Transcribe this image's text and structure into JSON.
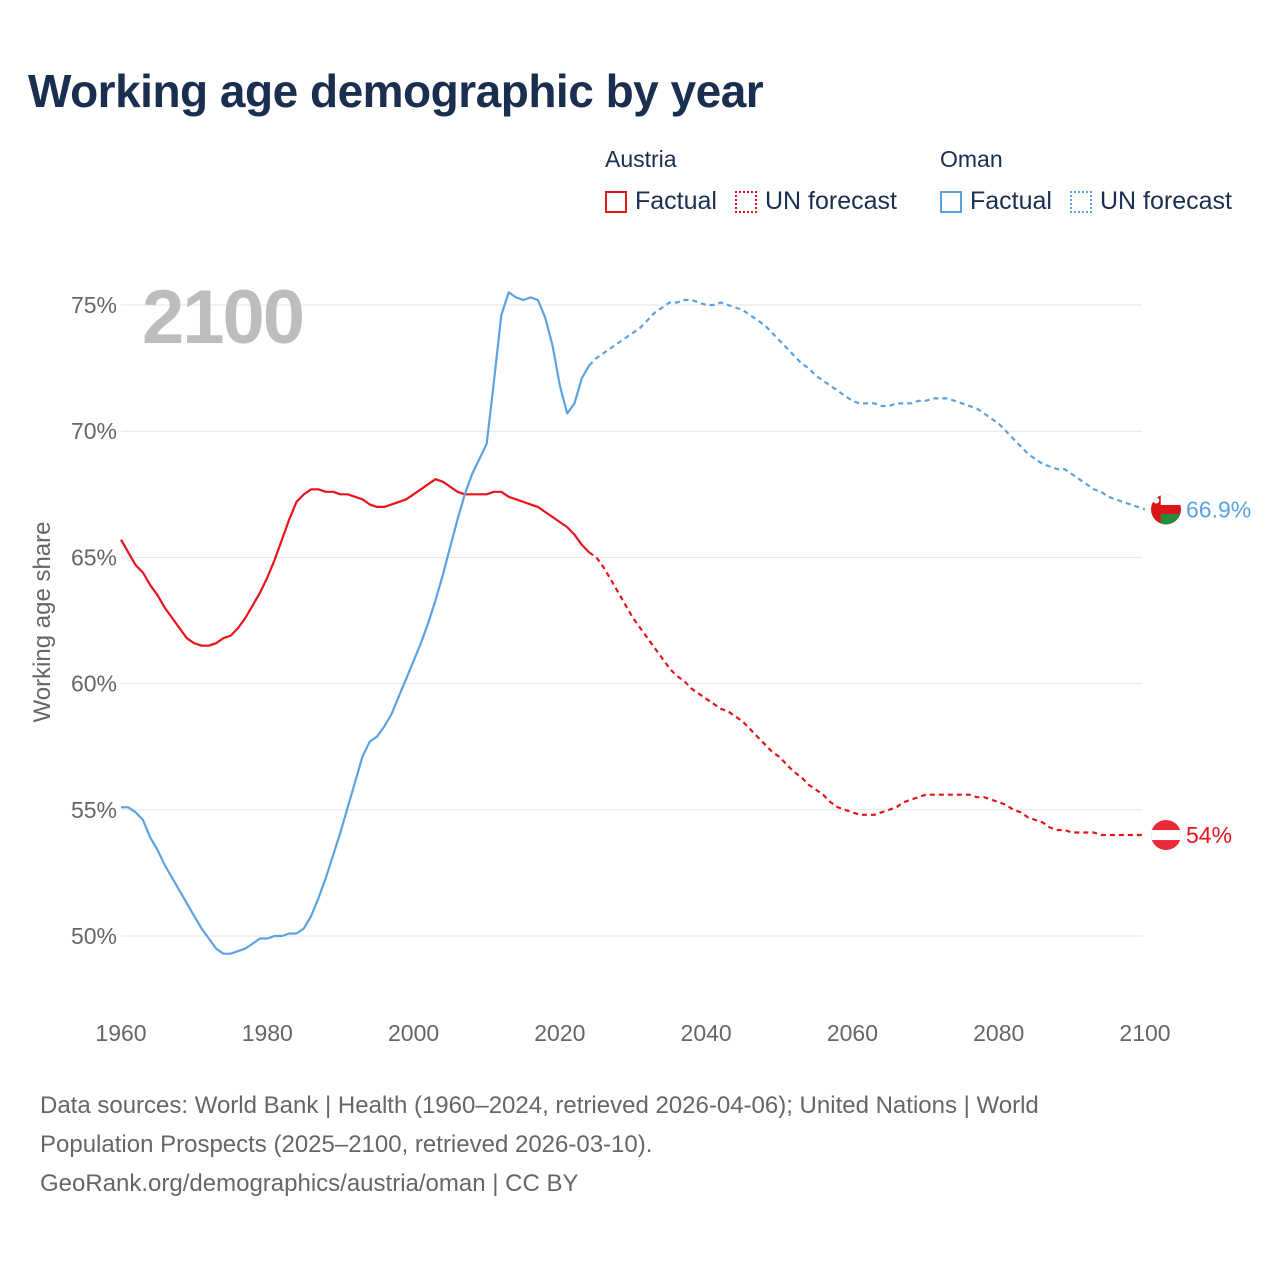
{
  "title": "Working age demographic by year",
  "legend": {
    "groups": [
      {
        "country": "Austria",
        "factual_label": "Factual",
        "forecast_label": "UN forecast",
        "color": "#e8141c"
      },
      {
        "country": "Oman",
        "factual_label": "Factual",
        "forecast_label": "UN forecast",
        "color": "#5ba3e0"
      }
    ]
  },
  "chart_data": {
    "type": "line",
    "title": "Working age demographic by year",
    "year_label": "2100",
    "ylabel": "Working age share",
    "xlabel": "",
    "xlim": [
      1960,
      2100
    ],
    "ylim": [
      47,
      77
    ],
    "x_ticks": [
      "1960",
      "1980",
      "2000",
      "2020",
      "2040",
      "2060",
      "2080",
      "2100"
    ],
    "x_tick_values": [
      1960,
      1980,
      2000,
      2020,
      2040,
      2060,
      2080,
      2100
    ],
    "y_ticks": [
      "50%",
      "55%",
      "60%",
      "65%",
      "70%",
      "75%"
    ],
    "y_tick_values": [
      50,
      55,
      60,
      65,
      70,
      75
    ],
    "factual_end_year": 2024,
    "series": [
      {
        "name": "Austria",
        "color": "#e8141c",
        "end_label": "54%",
        "flag": "austria",
        "points": [
          [
            1960,
            65.7
          ],
          [
            1961,
            65.2
          ],
          [
            1962,
            64.7
          ],
          [
            1963,
            64.4
          ],
          [
            1964,
            63.9
          ],
          [
            1965,
            63.5
          ],
          [
            1966,
            63.0
          ],
          [
            1967,
            62.6
          ],
          [
            1968,
            62.2
          ],
          [
            1969,
            61.8
          ],
          [
            1970,
            61.6
          ],
          [
            1971,
            61.5
          ],
          [
            1972,
            61.5
          ],
          [
            1973,
            61.6
          ],
          [
            1974,
            61.8
          ],
          [
            1975,
            61.9
          ],
          [
            1976,
            62.2
          ],
          [
            1977,
            62.6
          ],
          [
            1978,
            63.1
          ],
          [
            1979,
            63.6
          ],
          [
            1980,
            64.2
          ],
          [
            1981,
            64.9
          ],
          [
            1982,
            65.7
          ],
          [
            1983,
            66.5
          ],
          [
            1984,
            67.2
          ],
          [
            1985,
            67.5
          ],
          [
            1986,
            67.7
          ],
          [
            1987,
            67.7
          ],
          [
            1988,
            67.6
          ],
          [
            1989,
            67.6
          ],
          [
            1990,
            67.5
          ],
          [
            1991,
            67.5
          ],
          [
            1992,
            67.4
          ],
          [
            1993,
            67.3
          ],
          [
            1994,
            67.1
          ],
          [
            1995,
            67.0
          ],
          [
            1996,
            67.0
          ],
          [
            1997,
            67.1
          ],
          [
            1998,
            67.2
          ],
          [
            1999,
            67.3
          ],
          [
            2000,
            67.5
          ],
          [
            2001,
            67.7
          ],
          [
            2002,
            67.9
          ],
          [
            2003,
            68.1
          ],
          [
            2004,
            68.0
          ],
          [
            2005,
            67.8
          ],
          [
            2006,
            67.6
          ],
          [
            2007,
            67.5
          ],
          [
            2008,
            67.5
          ],
          [
            2009,
            67.5
          ],
          [
            2010,
            67.5
          ],
          [
            2011,
            67.6
          ],
          [
            2012,
            67.6
          ],
          [
            2013,
            67.4
          ],
          [
            2014,
            67.3
          ],
          [
            2015,
            67.2
          ],
          [
            2016,
            67.1
          ],
          [
            2017,
            67.0
          ],
          [
            2018,
            66.8
          ],
          [
            2019,
            66.6
          ],
          [
            2020,
            66.4
          ],
          [
            2021,
            66.2
          ],
          [
            2022,
            65.9
          ],
          [
            2023,
            65.5
          ],
          [
            2024,
            65.2
          ],
          [
            2025,
            65.0
          ],
          [
            2026,
            64.6
          ],
          [
            2027,
            64.1
          ],
          [
            2028,
            63.6
          ],
          [
            2029,
            63.1
          ],
          [
            2030,
            62.6
          ],
          [
            2031,
            62.2
          ],
          [
            2032,
            61.8
          ],
          [
            2033,
            61.4
          ],
          [
            2034,
            61.0
          ],
          [
            2035,
            60.6
          ],
          [
            2036,
            60.3
          ],
          [
            2037,
            60.1
          ],
          [
            2038,
            59.8
          ],
          [
            2039,
            59.6
          ],
          [
            2040,
            59.4
          ],
          [
            2041,
            59.2
          ],
          [
            2042,
            59.0
          ],
          [
            2043,
            58.9
          ],
          [
            2044,
            58.7
          ],
          [
            2045,
            58.5
          ],
          [
            2046,
            58.2
          ],
          [
            2047,
            57.9
          ],
          [
            2048,
            57.6
          ],
          [
            2049,
            57.3
          ],
          [
            2050,
            57.1
          ],
          [
            2051,
            56.8
          ],
          [
            2052,
            56.5
          ],
          [
            2053,
            56.3
          ],
          [
            2054,
            56.0
          ],
          [
            2055,
            55.8
          ],
          [
            2056,
            55.6
          ],
          [
            2057,
            55.3
          ],
          [
            2058,
            55.1
          ],
          [
            2059,
            55.0
          ],
          [
            2060,
            54.9
          ],
          [
            2061,
            54.8
          ],
          [
            2062,
            54.8
          ],
          [
            2063,
            54.8
          ],
          [
            2064,
            54.9
          ],
          [
            2065,
            55.0
          ],
          [
            2066,
            55.1
          ],
          [
            2067,
            55.3
          ],
          [
            2068,
            55.4
          ],
          [
            2069,
            55.5
          ],
          [
            2070,
            55.6
          ],
          [
            2071,
            55.6
          ],
          [
            2072,
            55.6
          ],
          [
            2073,
            55.6
          ],
          [
            2074,
            55.6
          ],
          [
            2075,
            55.6
          ],
          [
            2076,
            55.6
          ],
          [
            2077,
            55.5
          ],
          [
            2078,
            55.5
          ],
          [
            2079,
            55.4
          ],
          [
            2080,
            55.3
          ],
          [
            2081,
            55.2
          ],
          [
            2082,
            55.0
          ],
          [
            2083,
            54.9
          ],
          [
            2084,
            54.7
          ],
          [
            2085,
            54.6
          ],
          [
            2086,
            54.5
          ],
          [
            2087,
            54.3
          ],
          [
            2088,
            54.2
          ],
          [
            2089,
            54.2
          ],
          [
            2090,
            54.1
          ],
          [
            2091,
            54.1
          ],
          [
            2092,
            54.1
          ],
          [
            2093,
            54.1
          ],
          [
            2094,
            54.0
          ],
          [
            2095,
            54.0
          ],
          [
            2096,
            54.0
          ],
          [
            2097,
            54.0
          ],
          [
            2098,
            54.0
          ],
          [
            2099,
            54.0
          ],
          [
            2100,
            54.0
          ]
        ]
      },
      {
        "name": "Oman",
        "color": "#5ba3e0",
        "end_label": "66.9%",
        "flag": "oman",
        "points": [
          [
            1960,
            55.1
          ],
          [
            1961,
            55.1
          ],
          [
            1962,
            54.9
          ],
          [
            1963,
            54.6
          ],
          [
            1964,
            53.9
          ],
          [
            1965,
            53.4
          ],
          [
            1966,
            52.8
          ],
          [
            1967,
            52.3
          ],
          [
            1968,
            51.8
          ],
          [
            1969,
            51.3
          ],
          [
            1970,
            50.8
          ],
          [
            1971,
            50.3
          ],
          [
            1972,
            49.9
          ],
          [
            1973,
            49.5
          ],
          [
            1974,
            49.3
          ],
          [
            1975,
            49.3
          ],
          [
            1976,
            49.4
          ],
          [
            1977,
            49.5
          ],
          [
            1978,
            49.7
          ],
          [
            1979,
            49.9
          ],
          [
            1980,
            49.9
          ],
          [
            1981,
            50.0
          ],
          [
            1982,
            50.0
          ],
          [
            1983,
            50.1
          ],
          [
            1984,
            50.1
          ],
          [
            1985,
            50.3
          ],
          [
            1986,
            50.8
          ],
          [
            1987,
            51.5
          ],
          [
            1988,
            52.3
          ],
          [
            1989,
            53.2
          ],
          [
            1990,
            54.1
          ],
          [
            1991,
            55.1
          ],
          [
            1992,
            56.1
          ],
          [
            1993,
            57.1
          ],
          [
            1994,
            57.7
          ],
          [
            1995,
            57.9
          ],
          [
            1996,
            58.3
          ],
          [
            1997,
            58.8
          ],
          [
            1998,
            59.5
          ],
          [
            1999,
            60.2
          ],
          [
            2000,
            60.9
          ],
          [
            2001,
            61.6
          ],
          [
            2002,
            62.4
          ],
          [
            2003,
            63.3
          ],
          [
            2004,
            64.3
          ],
          [
            2005,
            65.4
          ],
          [
            2006,
            66.5
          ],
          [
            2007,
            67.5
          ],
          [
            2008,
            68.3
          ],
          [
            2009,
            68.9
          ],
          [
            2010,
            69.5
          ],
          [
            2011,
            72.0
          ],
          [
            2012,
            74.6
          ],
          [
            2013,
            75.5
          ],
          [
            2014,
            75.3
          ],
          [
            2015,
            75.2
          ],
          [
            2016,
            75.3
          ],
          [
            2017,
            75.2
          ],
          [
            2018,
            74.5
          ],
          [
            2019,
            73.4
          ],
          [
            2020,
            71.8
          ],
          [
            2021,
            70.7
          ],
          [
            2022,
            71.1
          ],
          [
            2023,
            72.1
          ],
          [
            2024,
            72.6
          ],
          [
            2025,
            72.9
          ],
          [
            2026,
            73.1
          ],
          [
            2027,
            73.3
          ],
          [
            2028,
            73.5
          ],
          [
            2029,
            73.7
          ],
          [
            2030,
            73.9
          ],
          [
            2031,
            74.1
          ],
          [
            2032,
            74.4
          ],
          [
            2033,
            74.7
          ],
          [
            2034,
            74.9
          ],
          [
            2035,
            75.1
          ],
          [
            2036,
            75.1
          ],
          [
            2037,
            75.2
          ],
          [
            2038,
            75.2
          ],
          [
            2039,
            75.1
          ],
          [
            2040,
            75.0
          ],
          [
            2041,
            75.0
          ],
          [
            2042,
            75.1
          ],
          [
            2043,
            75.0
          ],
          [
            2044,
            74.9
          ],
          [
            2045,
            74.8
          ],
          [
            2046,
            74.6
          ],
          [
            2047,
            74.4
          ],
          [
            2048,
            74.2
          ],
          [
            2049,
            73.9
          ],
          [
            2050,
            73.6
          ],
          [
            2051,
            73.3
          ],
          [
            2052,
            73.0
          ],
          [
            2053,
            72.7
          ],
          [
            2054,
            72.5
          ],
          [
            2055,
            72.2
          ],
          [
            2056,
            72.0
          ],
          [
            2057,
            71.8
          ],
          [
            2058,
            71.6
          ],
          [
            2059,
            71.4
          ],
          [
            2060,
            71.2
          ],
          [
            2061,
            71.1
          ],
          [
            2062,
            71.1
          ],
          [
            2063,
            71.1
          ],
          [
            2064,
            71.0
          ],
          [
            2065,
            71.0
          ],
          [
            2066,
            71.1
          ],
          [
            2067,
            71.1
          ],
          [
            2068,
            71.1
          ],
          [
            2069,
            71.2
          ],
          [
            2070,
            71.2
          ],
          [
            2071,
            71.3
          ],
          [
            2072,
            71.3
          ],
          [
            2073,
            71.3
          ],
          [
            2074,
            71.2
          ],
          [
            2075,
            71.1
          ],
          [
            2076,
            71.0
          ],
          [
            2077,
            70.9
          ],
          [
            2078,
            70.7
          ],
          [
            2079,
            70.5
          ],
          [
            2080,
            70.3
          ],
          [
            2081,
            70.0
          ],
          [
            2082,
            69.7
          ],
          [
            2083,
            69.4
          ],
          [
            2084,
            69.1
          ],
          [
            2085,
            68.9
          ],
          [
            2086,
            68.7
          ],
          [
            2087,
            68.6
          ],
          [
            2088,
            68.5
          ],
          [
            2089,
            68.5
          ],
          [
            2090,
            68.3
          ],
          [
            2091,
            68.1
          ],
          [
            2092,
            67.9
          ],
          [
            2093,
            67.7
          ],
          [
            2094,
            67.6
          ],
          [
            2095,
            67.4
          ],
          [
            2096,
            67.3
          ],
          [
            2097,
            67.2
          ],
          [
            2098,
            67.1
          ],
          [
            2099,
            67.0
          ],
          [
            2100,
            66.9
          ]
        ]
      }
    ]
  },
  "footer": {
    "line1": "Data sources: World Bank | Health (1960–2024, retrieved 2026-04-06); United Nations | World",
    "line2": "Population Prospects (2025–2100, retrieved 2026-03-10).",
    "line3": "GeoRank.org/demographics/austria/oman | CC BY"
  }
}
